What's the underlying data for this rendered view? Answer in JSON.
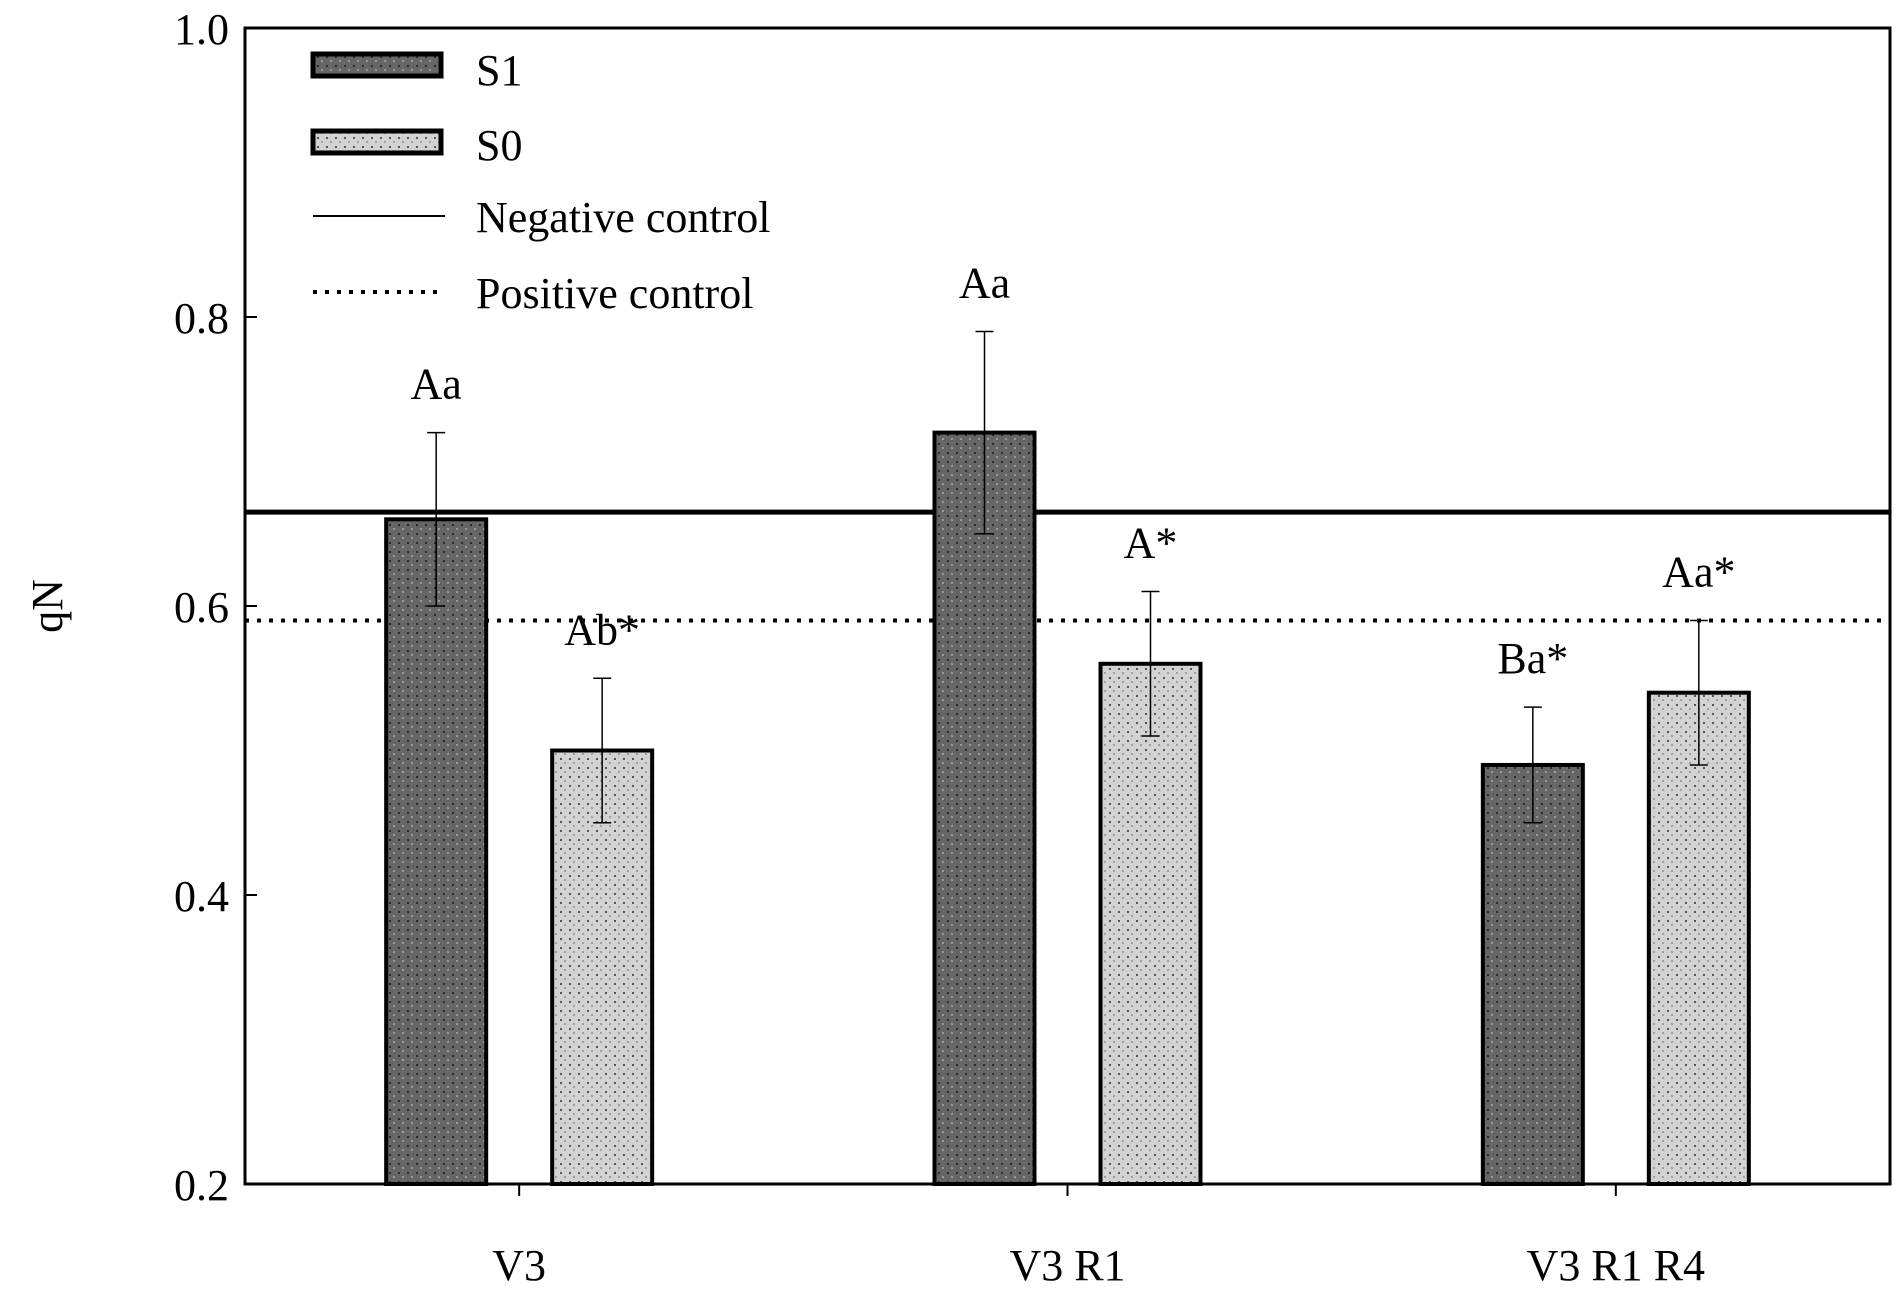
{
  "chart_data": {
    "type": "bar",
    "ylabel": "qN",
    "xlabel": "",
    "ylim": [
      0.2,
      1.0
    ],
    "yticks": [
      0.2,
      0.4,
      0.6,
      0.8,
      1.0
    ],
    "ytick_labels": [
      "0.2",
      "0.4",
      "0.6",
      "0.8",
      "1.0"
    ],
    "categories": [
      "V3",
      "V3 R1",
      "V3 R1 R4"
    ],
    "series": [
      {
        "name": "S1",
        "values": [
          0.66,
          0.72,
          0.49
        ],
        "errors": [
          0.06,
          0.07,
          0.04
        ],
        "labels": [
          "Aa",
          "Aa",
          "Ba*"
        ],
        "color": "#606060"
      },
      {
        "name": "S0",
        "values": [
          0.5,
          0.56,
          0.54
        ],
        "errors": [
          0.05,
          0.05,
          0.05
        ],
        "labels": [
          "Ab*",
          "A*",
          "Aa*"
        ],
        "color": "#cccccc"
      }
    ],
    "reference_lines": [
      {
        "name": "Negative control",
        "value": 0.665,
        "style": "solid"
      },
      {
        "name": "Positive control",
        "value": 0.59,
        "style": "dotted"
      }
    ],
    "legend": {
      "position": "top-left",
      "entries": [
        "S1",
        "S0",
        "Negative control",
        "Positive control"
      ]
    },
    "grid": false
  }
}
